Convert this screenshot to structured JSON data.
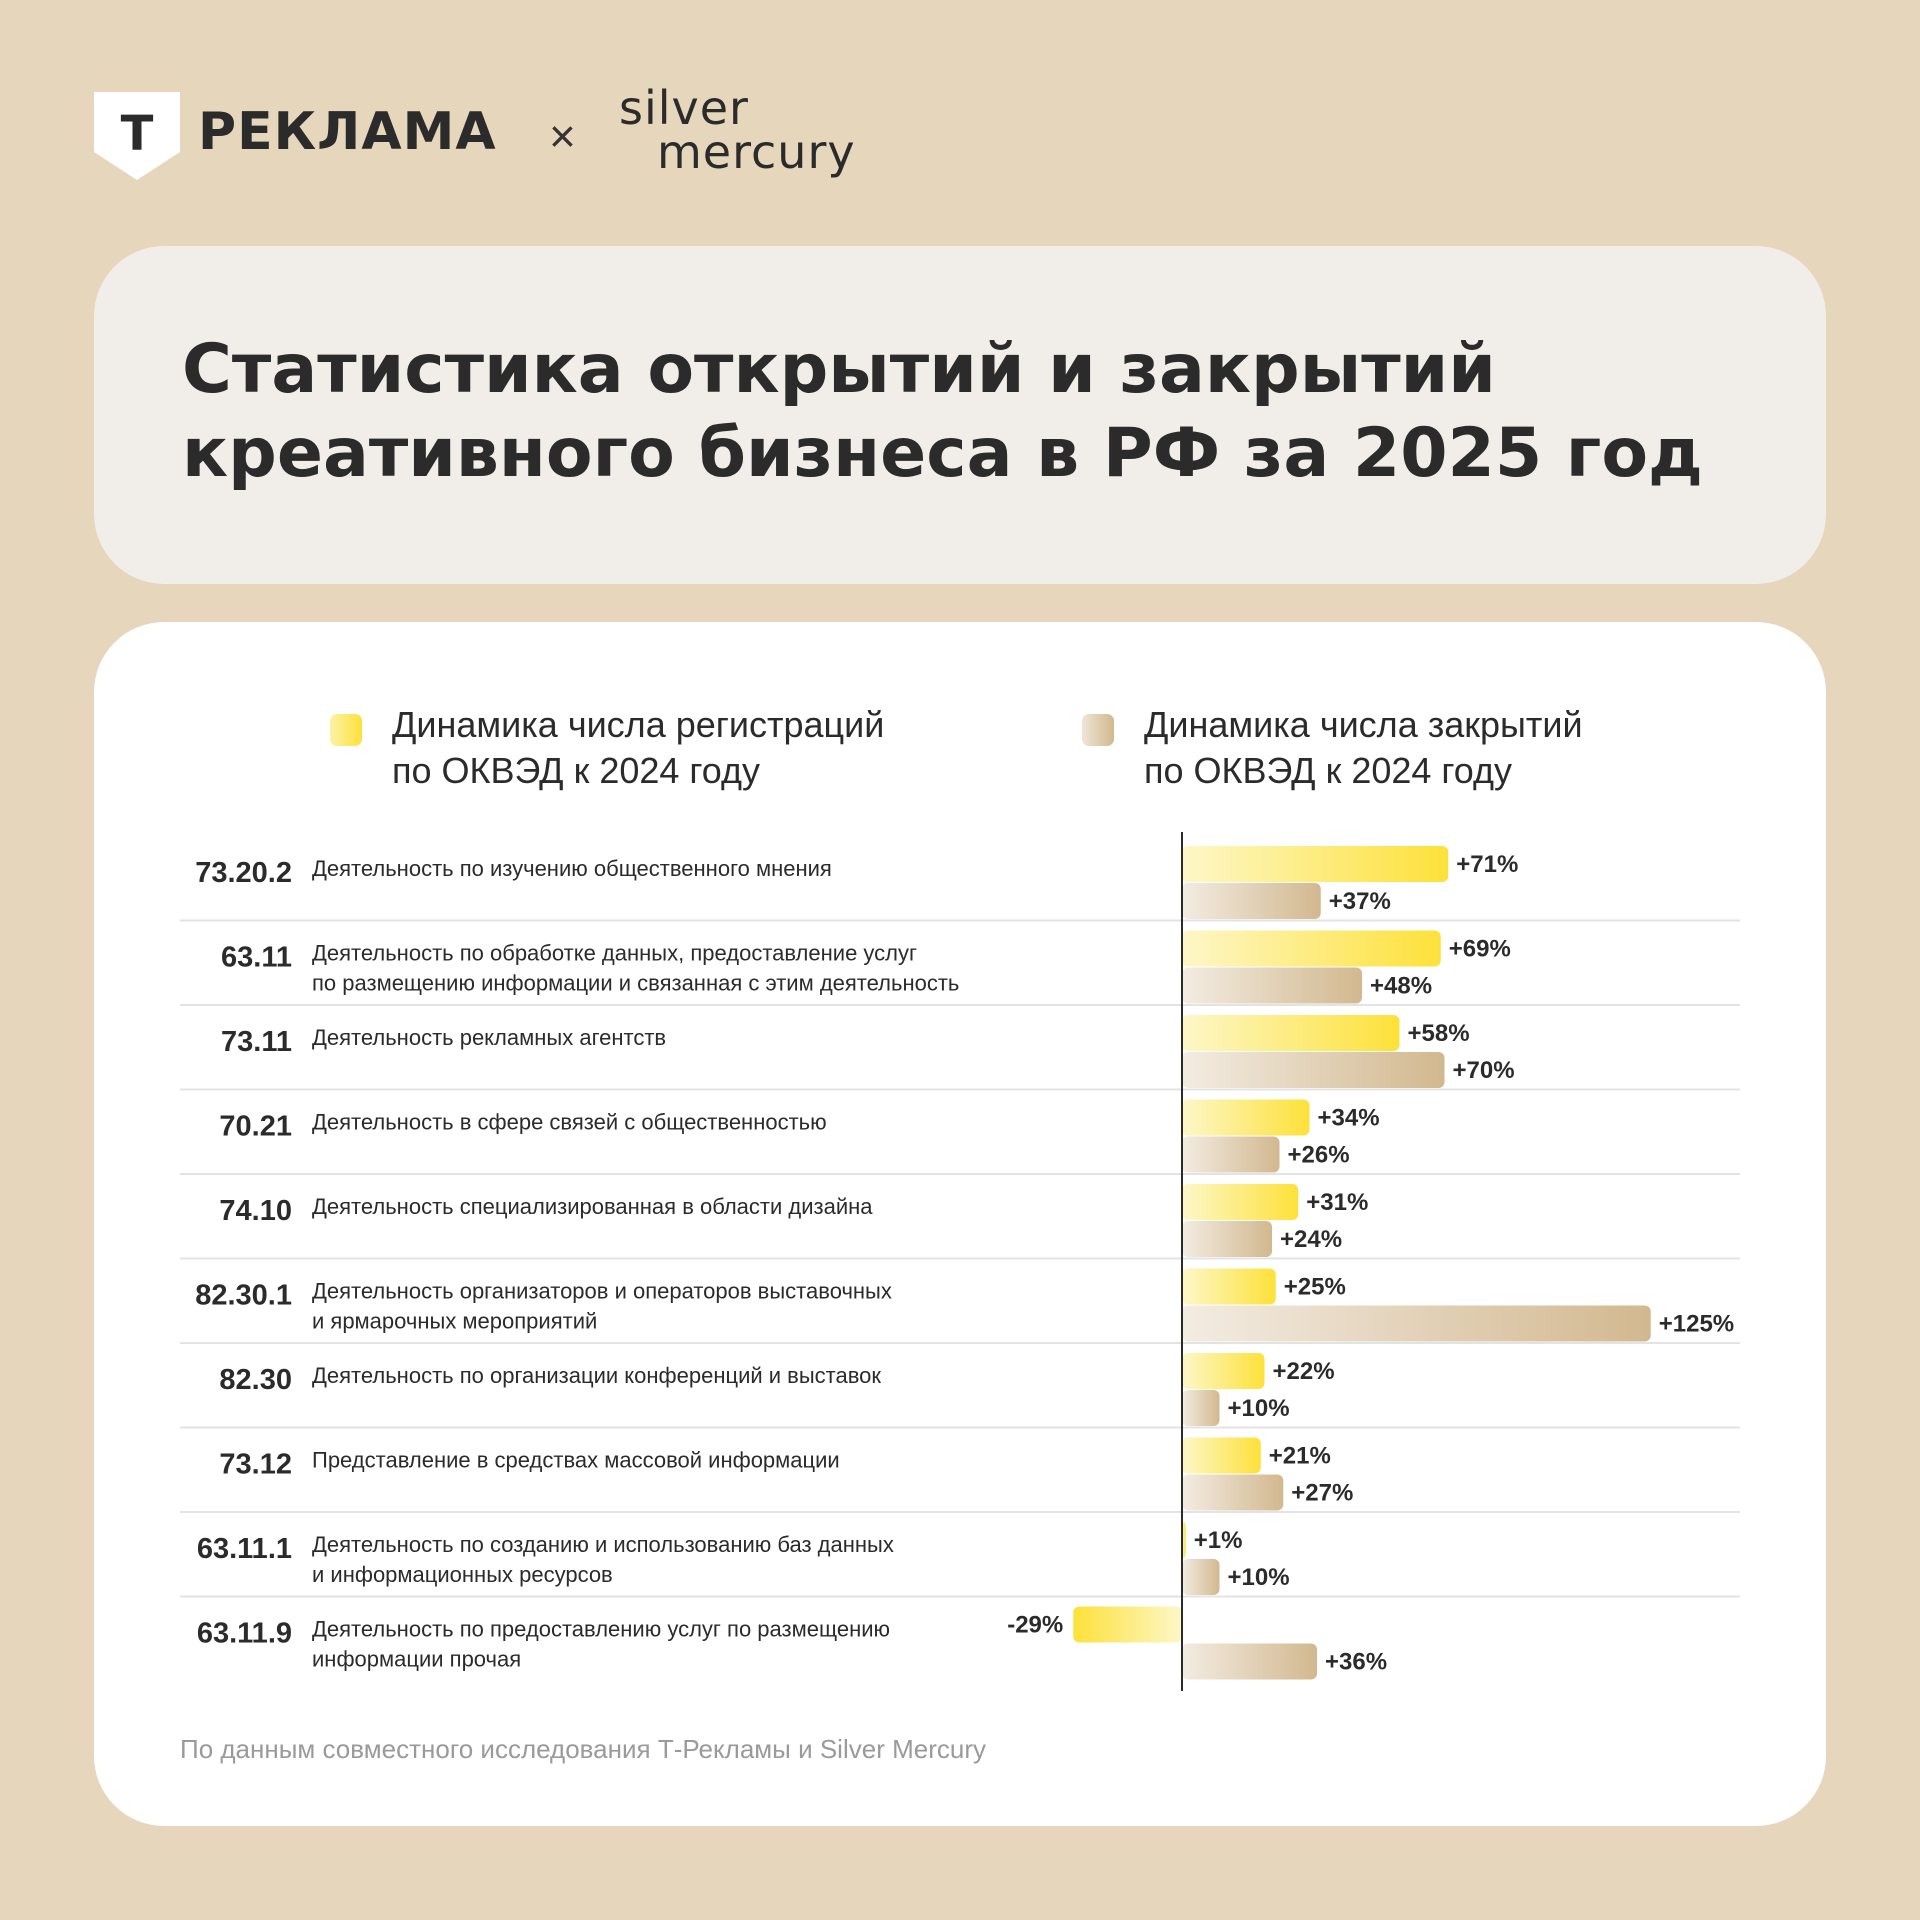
{
  "brand": {
    "name": "РЕКЛАМА",
    "letter": "Т",
    "separator": "×",
    "partner_line1": "silver",
    "partner_line2": "mercury"
  },
  "title": "Статистика открытий и закрытий креативного бизнеса в РФ за 2025 год",
  "colors": {
    "registrations": "#fde13a",
    "closures": "#d2b88f",
    "background": "#e6d6bb"
  },
  "chart_data": {
    "type": "bar",
    "orientation": "horizontal",
    "legend_position": "top",
    "series": [
      {
        "name": "Динамика числа регистраций по ОКВЭД к 2024 году",
        "values": [
          71,
          69,
          58,
          34,
          31,
          25,
          22,
          21,
          1,
          -29
        ]
      },
      {
        "name": "Динамика числа закрытий по ОКВЭД к 2024 году",
        "values": [
          37,
          48,
          70,
          26,
          24,
          125,
          10,
          27,
          10,
          36
        ]
      }
    ],
    "value_labels": [
      [
        "+71%",
        "+69%",
        "+58%",
        "+34%",
        "+31%",
        "+25%",
        "+22%",
        "+21%",
        "+1%",
        "-29%"
      ],
      [
        "+37%",
        "+48%",
        "+70%",
        "+26%",
        "+24%",
        "+125%",
        "+10%",
        "+27%",
        "+10%",
        "+36%"
      ]
    ],
    "categories": [
      {
        "code": "73.20.2",
        "lines": [
          "Деятельность по изучению общественного мнения"
        ]
      },
      {
        "code": "63.11",
        "lines": [
          "Деятельность по обработке данных, предоставление услуг",
          "по размещению информации и связанная с этим деятельность"
        ]
      },
      {
        "code": "73.11",
        "lines": [
          "Деятельность рекламных агентств"
        ]
      },
      {
        "code": "70.21",
        "lines": [
          "Деятельность в сфере связей с общественностью"
        ]
      },
      {
        "code": "74.10",
        "lines": [
          "Деятельность специализированная в области дизайна"
        ]
      },
      {
        "code": "82.30.1",
        "lines": [
          "Деятельность организаторов и операторов выставочных",
          "и ярмарочных мероприятий"
        ]
      },
      {
        "code": "82.30",
        "lines": [
          "Деятельность по организации конференций и выставок"
        ]
      },
      {
        "code": "73.12",
        "lines": [
          "Представление в средствах массовой информации"
        ]
      },
      {
        "code": "63.11.1",
        "lines": [
          "Деятельность по созданию и использованию баз данных",
          "и информационных ресурсов"
        ]
      },
      {
        "code": "63.11.9",
        "lines": [
          "Деятельность по предоставлению услуг по размещению",
          "информации прочая"
        ]
      }
    ]
  },
  "legend": {
    "registrations_line1": "Динамика числа регистраций",
    "registrations_line2": "по ОКВЭД к 2024 году",
    "closures_line1": "Динамика числа закрытий",
    "closures_line2": "по ОКВЭД к 2024 году"
  },
  "source": "По данным совместного исследования Т-Рекламы и Silver Mercury"
}
